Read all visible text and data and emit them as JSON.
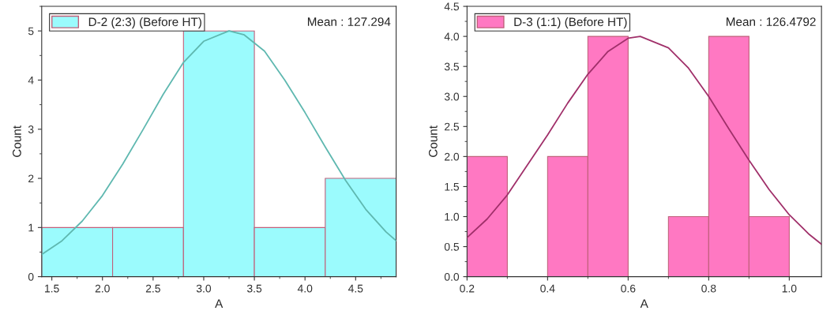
{
  "chart_data": [
    {
      "type": "histogram",
      "xlabel": "A",
      "ylabel": "Count",
      "xlim": [
        1.4,
        4.9
      ],
      "ylim": [
        0,
        5.5
      ],
      "xticks": [
        {
          "value": 1.5,
          "label": "1.5"
        },
        {
          "value": 2.0,
          "label": "2.0"
        },
        {
          "value": 2.5,
          "label": "2.5"
        },
        {
          "value": 3.0,
          "label": "3.0"
        },
        {
          "value": 3.5,
          "label": "3.5"
        },
        {
          "value": 4.0,
          "label": "4.0"
        },
        {
          "value": 4.5,
          "label": "4.5"
        }
      ],
      "yticks": [
        0,
        1,
        2,
        3,
        4,
        5
      ],
      "grid": false,
      "legend": "top left",
      "annotations": [
        "Mean : 127.294"
      ],
      "series": [
        {
          "name": "D-2 (2:3) (Before HT)",
          "color": "#9bfbfd",
          "bins": [
            1.4,
            2.1,
            2.8,
            3.5,
            4.2,
            4.9
          ],
          "values": [
            1,
            1,
            5,
            1,
            2
          ]
        },
        {
          "type": "line",
          "color": "#5fb8b0",
          "x": [
            1.4,
            1.6,
            1.8,
            2.0,
            2.2,
            2.4,
            2.6,
            2.8,
            3.0,
            3.25,
            3.4,
            3.6,
            3.8,
            4.0,
            4.2,
            4.4,
            4.6,
            4.8,
            4.9
          ],
          "values": [
            0.45,
            0.73,
            1.13,
            1.65,
            2.29,
            2.99,
            3.71,
            4.36,
            4.79,
            5.0,
            4.92,
            4.59,
            4.0,
            3.34,
            2.64,
            1.96,
            1.37,
            0.91,
            0.73
          ]
        }
      ]
    },
    {
      "type": "histogram",
      "xlabel": "A",
      "ylabel": "Count",
      "xlim": [
        0.2,
        1.08
      ],
      "ylim": [
        0,
        4.5
      ],
      "xticks": [
        0.2,
        0.4,
        0.6,
        0.8,
        {
          "value": 1.0,
          "label": "1.0"
        }
      ],
      "yticks": [
        {
          "value": 0,
          "label": "0.0"
        },
        0.5,
        {
          "value": 1,
          "label": "1.0"
        },
        1.5,
        {
          "value": 2,
          "label": "2.0"
        },
        2.5,
        {
          "value": 3,
          "label": "3.0"
        },
        3.5,
        {
          "value": 4,
          "label": "4.0"
        },
        4.5
      ],
      "grid": false,
      "legend": "top left",
      "annotations": [
        "Mean : 126.4792"
      ],
      "series": [
        {
          "name": "D-3 (1:1) (Before HT)",
          "color": "#ff78c2",
          "bins": [
            0.2,
            0.3,
            0.4,
            0.5,
            0.6,
            0.7,
            0.8,
            0.9,
            1.0
          ],
          "values": [
            2,
            0,
            2,
            4,
            0,
            1,
            4,
            1
          ]
        },
        {
          "type": "line",
          "color": "#a0306a",
          "x": [
            0.2,
            0.25,
            0.3,
            0.35,
            0.4,
            0.45,
            0.5,
            0.55,
            0.6,
            0.63,
            0.7,
            0.75,
            0.8,
            0.85,
            0.9,
            0.95,
            1.0,
            1.05,
            1.08
          ],
          "values": [
            0.65,
            0.96,
            1.36,
            1.86,
            2.36,
            2.89,
            3.37,
            3.75,
            3.97,
            4.0,
            3.81,
            3.47,
            3.0,
            2.46,
            1.94,
            1.45,
            1.03,
            0.7,
            0.54
          ]
        }
      ]
    }
  ]
}
